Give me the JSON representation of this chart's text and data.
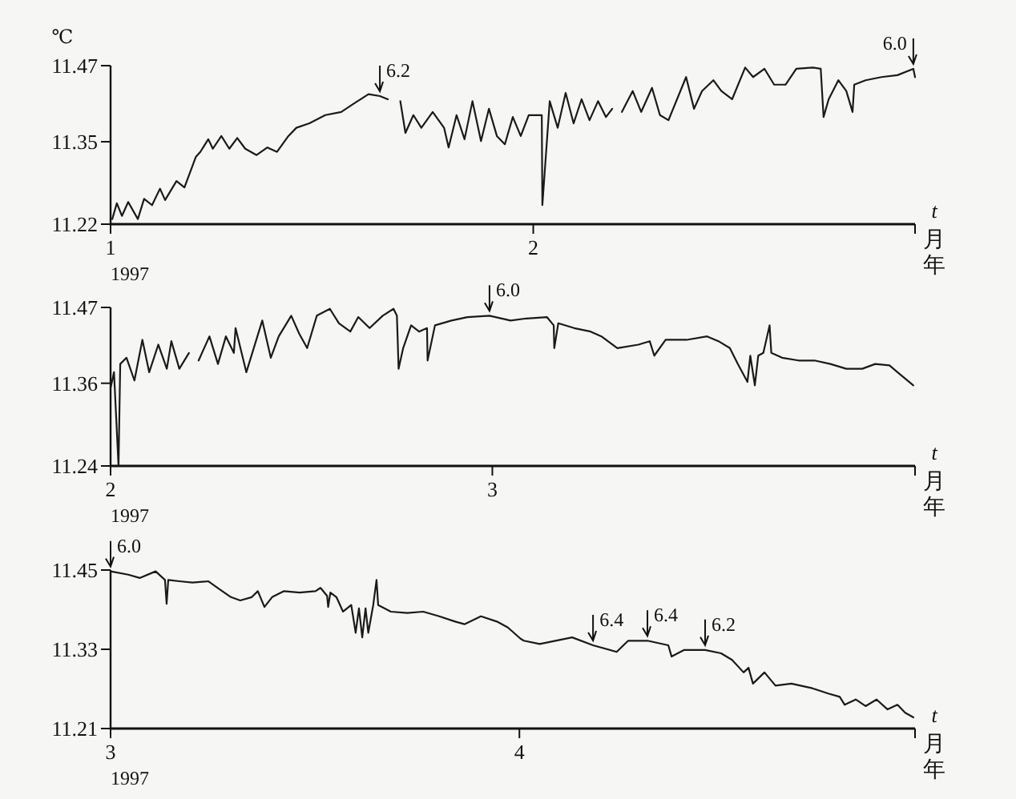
{
  "chart_data": [
    {
      "type": "line",
      "ylabel": "℃",
      "xlabel": "t\n月年",
      "xlim": [
        "1997-01-01",
        "1997-03-01"
      ],
      "ylim": [
        11.22,
        11.47
      ],
      "xticks": [
        {
          "value": "1997-01-01",
          "label": "1"
        },
        {
          "value": "1997-02-01",
          "label": "2"
        },
        {
          "value": "1997-03-01",
          "label": null
        }
      ],
      "yticks": [
        11.22,
        11.35,
        11.47
      ],
      "annotations": [
        "1997",
        {
          "text": "6.2",
          "x": "1997-01-20T18:00",
          "y": 11.422
        },
        {
          "text": "6.0",
          "x": "1997-02-28T21:00",
          "y": 11.465
        }
      ],
      "series": [
        {
          "color": "#1a1a1a",
          "x": [
            "1997-01-01T03:00",
            "1997-01-01T11:00",
            "1997-01-01T20:00",
            "1997-01-02T07:00",
            "1997-01-03T00:00",
            "1997-01-03T11:00",
            "1997-01-04T01:00",
            "1997-01-04T15:00",
            "1997-01-05T00:00",
            "1997-01-05T20:00",
            "1997-01-06T10:00",
            "1997-01-07T06:00",
            "1997-01-07T14:00",
            "1997-01-08T04:00",
            "1997-01-08T12:00",
            "1997-01-09T03:00",
            "1997-01-09T17:00",
            "1997-01-10T07:00",
            "1997-01-10T21:00",
            "1997-01-11T17:00",
            "1997-01-12T12:00",
            "1997-01-13T05:00",
            "1997-01-14T01:00",
            "1997-01-14T15:00",
            "1997-01-15T14:00",
            "1997-01-16T18:00",
            "1997-01-17T22:00",
            "1997-01-18T18:00",
            "1997-01-19T22:00",
            "1997-01-20T18:00",
            "1997-01-21T08:00"
          ],
          "values": [
            11.228,
            11.253,
            11.233,
            11.255,
            11.228,
            11.26,
            11.25,
            11.276,
            11.258,
            11.288,
            11.278,
            11.326,
            11.334,
            11.354,
            11.339,
            11.359,
            11.339,
            11.356,
            11.339,
            11.329,
            11.341,
            11.334,
            11.359,
            11.372,
            11.379,
            11.392,
            11.397,
            11.409,
            11.425,
            11.422,
            11.417
          ]
        },
        {
          "color": "#1a1a1a",
          "x": [
            "1997-01-22T06:00",
            "1997-01-22T15:00",
            "1997-01-23T05:00",
            "1997-01-23T19:00",
            "1997-01-24T15:00",
            "1997-01-25T11:00",
            "1997-01-25T19:00",
            "1997-01-26T09:00",
            "1997-01-26T23:00",
            "1997-01-27T13:00",
            "1997-01-28T04:00",
            "1997-01-28T18:00",
            "1997-01-29T08:00",
            "1997-01-29T22:00",
            "1997-01-30T12:00",
            "1997-01-31T02:00",
            "1997-01-31T16:00",
            "1997-02-01T15:00",
            "1997-02-01T16:00",
            "1997-02-02T05:00",
            "1997-02-02T19:00",
            "1997-02-03T09:00",
            "1997-02-03T23:00",
            "1997-02-04T13:00",
            "1997-02-05T03:00",
            "1997-02-05T18:00",
            "1997-02-06T08:00",
            "1997-02-06T19:00"
          ],
          "values": [
            11.414,
            11.364,
            11.392,
            11.372,
            11.397,
            11.372,
            11.341,
            11.392,
            11.354,
            11.414,
            11.351,
            11.402,
            11.359,
            11.346,
            11.389,
            11.359,
            11.392,
            11.392,
            11.25,
            11.414,
            11.372,
            11.427,
            11.379,
            11.417,
            11.384,
            11.414,
            11.389,
            11.402
          ]
        },
        {
          "color": "#1a1a1a",
          "x": [
            "1997-02-07T12:00",
            "1997-02-08T07:00",
            "1997-02-08T22:00",
            "1997-02-09T17:00",
            "1997-02-10T07:00",
            "1997-02-10T22:00",
            "1997-02-12T05:00",
            "1997-02-12T19:00",
            "1997-02-13T09:00",
            "1997-02-14T05:00",
            "1997-02-14T19:00",
            "1997-02-15T14:00",
            "1997-02-16T13:00",
            "1997-02-17T03:00",
            "1997-02-17T23:00",
            "1997-02-18T16:00",
            "1997-02-19T12:00",
            "1997-02-20T07:00",
            "1997-02-21T12:00",
            "1997-02-22T02:00",
            "1997-02-22T07:00",
            "1997-02-22T16:00",
            "1997-02-23T09:00",
            "1997-02-23T23:00",
            "1997-02-24T10:00",
            "1997-02-24T13:00",
            "1997-02-25T09:00",
            "1997-02-26T13:00",
            "1997-02-27T17:00",
            "1997-02-28T21:00",
            "1997-03-01T00:00"
          ],
          "values": [
            11.397,
            11.43,
            11.397,
            11.435,
            11.392,
            11.384,
            11.452,
            11.402,
            11.43,
            11.447,
            11.43,
            11.417,
            11.467,
            11.452,
            11.465,
            11.44,
            11.44,
            11.465,
            11.467,
            11.465,
            11.389,
            11.417,
            11.447,
            11.43,
            11.397,
            11.44,
            11.447,
            11.452,
            11.455,
            11.465,
            11.452
          ]
        }
      ]
    },
    {
      "type": "line",
      "xlabel": "t\n月年",
      "xlim": [
        "1997-02-01",
        "1997-04-01"
      ],
      "ylim": [
        11.24,
        11.47
      ],
      "xticks": [
        {
          "value": "1997-02-01",
          "label": "2"
        },
        {
          "value": "1997-03-01",
          "label": "3"
        },
        {
          "value": "1997-04-01",
          "label": null
        }
      ],
      "yticks": [
        11.24,
        11.36,
        11.47
      ],
      "annotations": [
        "1997",
        {
          "text": "6.0",
          "x": "1997-02-28T19:00",
          "y": 11.458
        }
      ],
      "series": [
        {
          "color": "#1a1a1a",
          "x": [
            "1997-02-01T00:00",
            "1997-02-01T06:00",
            "1997-02-01T14:00",
            "1997-02-01T17:00",
            "1997-02-02T04:00",
            "1997-02-02T18:00",
            "1997-02-03T08:00",
            "1997-02-03T20:00",
            "1997-02-04T12:00",
            "1997-02-05T03:00",
            "1997-02-05T11:00",
            "1997-02-06T01:00",
            "1997-02-06T18:00"
          ],
          "values": [
            11.353,
            11.376,
            11.24,
            11.388,
            11.397,
            11.364,
            11.423,
            11.376,
            11.416,
            11.381,
            11.421,
            11.381,
            11.404
          ]
        },
        {
          "color": "#1a1a1a",
          "x": [
            "1997-02-07T11:00",
            "1997-02-08T06:00",
            "1997-02-08T21:00",
            "1997-02-09T11:00",
            "1997-02-10T01:00",
            "1997-02-10T04:00",
            "1997-02-10T23:00",
            "1997-02-12T03:00",
            "1997-02-12T18:00",
            "1997-02-13T08:00",
            "1997-02-14T06:00",
            "1997-02-14T20:00",
            "1997-02-15T10:00",
            "1997-02-16T03:00",
            "1997-02-17T02:00",
            "1997-02-17T18:00",
            "1997-02-18T14:00",
            "1997-02-19T04:00",
            "1997-02-20T00:00",
            "1997-02-20T23:00",
            "1997-02-21T18:00",
            "1997-02-22T00:00",
            "1997-02-22T03:00",
            "1997-02-22T11:00",
            "1997-02-23T01:00",
            "1997-02-23T15:00",
            "1997-02-24T05:00",
            "1997-02-24T06:00",
            "1997-02-24T19:00",
            "1997-02-26T00:00",
            "1997-02-27T04:00",
            "1997-02-28T19:00",
            "1997-03-02T08:00",
            "1997-03-03T12:00",
            "1997-03-05T00:00",
            "1997-03-05T12:00",
            "1997-03-05T13:00",
            "1997-03-05T20:00",
            "1997-03-07T00:00",
            "1997-03-08T05:00",
            "1997-03-09T00:00",
            "1997-03-10T04:00",
            "1997-03-11T17:00",
            "1997-03-12T13:00",
            "1997-03-12T21:00",
            "1997-03-13T17:00",
            "1997-03-15T06:00",
            "1997-03-16T18:00",
            "1997-03-17T14:00",
            "1997-03-18T10:00",
            "1997-03-19T00:00",
            "1997-03-19T17:00",
            "1997-03-19T22:00",
            "1997-03-20T06:00",
            "1997-03-20T12:00",
            "1997-03-20T21:00",
            "1997-03-21T08:00",
            "1997-03-21T11:00",
            "1997-03-22T06:00",
            "1997-03-23T11:00",
            "1997-03-24T15:00",
            "1997-03-25T19:00",
            "1997-03-26T23:00",
            "1997-03-28T03:00",
            "1997-03-29T02:00",
            "1997-03-30T03:00",
            "1997-03-30T20:00",
            "1997-03-31T21:00"
          ],
          "values": [
            11.393,
            11.428,
            11.388,
            11.428,
            11.404,
            11.44,
            11.376,
            11.451,
            11.397,
            11.428,
            11.458,
            11.432,
            11.411,
            11.458,
            11.468,
            11.447,
            11.435,
            11.456,
            11.44,
            11.458,
            11.468,
            11.458,
            11.381,
            11.411,
            11.444,
            11.435,
            11.44,
            11.393,
            11.444,
            11.451,
            11.456,
            11.458,
            11.451,
            11.454,
            11.456,
            11.444,
            11.411,
            11.447,
            11.44,
            11.435,
            11.428,
            11.411,
            11.416,
            11.421,
            11.4,
            11.423,
            11.423,
            11.428,
            11.421,
            11.411,
            11.388,
            11.362,
            11.4,
            11.357,
            11.4,
            11.404,
            11.444,
            11.404,
            11.397,
            11.393,
            11.393,
            11.388,
            11.381,
            11.381,
            11.388,
            11.386,
            11.374,
            11.357
          ]
        }
      ]
    },
    {
      "type": "line",
      "xlabel": "t\n月年",
      "xlim": [
        "1997-03-01",
        "1997-05-01"
      ],
      "ylim": [
        11.21,
        11.45
      ],
      "xticks": [
        {
          "value": "1997-03-01",
          "label": "3"
        },
        {
          "value": "1997-04-01",
          "label": "4"
        },
        {
          "value": "1997-05-01",
          "label": null
        }
      ],
      "yticks": [
        11.21,
        11.33,
        11.45
      ],
      "annotations": [
        "1997",
        {
          "text": "6.0",
          "x": "1997-03-01T00:00",
          "y": 11.448
        },
        {
          "text": "6.4",
          "x": "1997-04-06T14:00",
          "y": 11.336
        },
        {
          "text": "6.4",
          "x": "1997-04-10T17:00",
          "y": 11.343
        },
        {
          "text": "6.2",
          "x": "1997-04-15T02:00",
          "y": 11.329
        }
      ],
      "series": [
        {
          "color": "#1a1a1a",
          "x": [
            "1997-03-01T00:00",
            "1997-03-02T08:00",
            "1997-03-03T05:00",
            "1997-03-04T10:00",
            "1997-03-05T03:00",
            "1997-03-05T06:00",
            "1997-03-05T09:00",
            "1997-03-06T05:00",
            "1997-03-07T05:00",
            "1997-03-08T10:00",
            "1997-03-09T06:00",
            "1997-03-10T03:00",
            "1997-03-10T20:00",
            "1997-03-11T17:00",
            "1997-03-12T04:00",
            "1997-03-12T16:00",
            "1997-03-13T06:00",
            "1997-03-14T03:00",
            "1997-03-15T08:00",
            "1997-03-16T13:00",
            "1997-03-16T22:00",
            "1997-03-17T10:00",
            "1997-03-17T12:00",
            "1997-03-17T16:00",
            "1997-03-18T03:00",
            "1997-03-18T15:00",
            "1997-03-19T06:00",
            "1997-03-19T14:00",
            "1997-03-19T20:00",
            "1997-03-20T02:00",
            "1997-03-20T08:00",
            "1997-03-20T13:00",
            "1997-03-20T22:00",
            "1997-03-21T04:00",
            "1997-03-21T07:00",
            "1997-03-22T06:00",
            "1997-03-23T12:00",
            "1997-03-24T17:00",
            "1997-03-25T22:00",
            "1997-03-27T03:00",
            "1997-03-27T20:00",
            "1997-03-29T02:00",
            "1997-03-30T07:00",
            "1997-03-31T03:00",
            "1997-04-01T02:00",
            "1997-04-01T08:00",
            "1997-04-02T13:00",
            "1997-04-05T00:00",
            "1997-04-06T14:00",
            "1997-04-08T09:00",
            "1997-04-09T06:00",
            "1997-04-10T17:00",
            "1997-04-12T07:00",
            "1997-04-12T13:00",
            "1997-04-13T12:00",
            "1997-04-15T02:00",
            "1997-04-16T07:00",
            "1997-04-17T03:00",
            "1997-04-18T00:00",
            "1997-04-18T09:00",
            "1997-04-18T17:00",
            "1997-04-19T14:00",
            "1997-04-20T10:00",
            "1997-04-21T15:00",
            "1997-04-23T05:00",
            "1997-04-24T10:00",
            "1997-04-25T07:00",
            "1997-04-25T16:00",
            "1997-04-26T12:00",
            "1997-04-27T06:00",
            "1997-04-28T02:00",
            "1997-04-28T22:00",
            "1997-04-29T16:00",
            "1997-04-30T06:00",
            "1997-04-30T21:00"
          ],
          "values": [
            11.448,
            11.443,
            11.438,
            11.448,
            11.435,
            11.399,
            11.435,
            11.433,
            11.431,
            11.433,
            11.421,
            11.409,
            11.404,
            11.409,
            11.418,
            11.394,
            11.409,
            11.418,
            11.416,
            11.418,
            11.423,
            11.411,
            11.394,
            11.416,
            11.409,
            11.387,
            11.397,
            11.355,
            11.392,
            11.348,
            11.392,
            11.355,
            11.397,
            11.435,
            11.397,
            11.387,
            11.385,
            11.387,
            11.38,
            11.372,
            11.368,
            11.38,
            11.372,
            11.363,
            11.346,
            11.343,
            11.338,
            11.348,
            11.336,
            11.326,
            11.343,
            11.343,
            11.336,
            11.319,
            11.329,
            11.329,
            11.324,
            11.314,
            11.295,
            11.302,
            11.278,
            11.295,
            11.275,
            11.278,
            11.271,
            11.263,
            11.258,
            11.246,
            11.254,
            11.244,
            11.254,
            11.239,
            11.246,
            11.234,
            11.227
          ]
        }
      ]
    }
  ]
}
